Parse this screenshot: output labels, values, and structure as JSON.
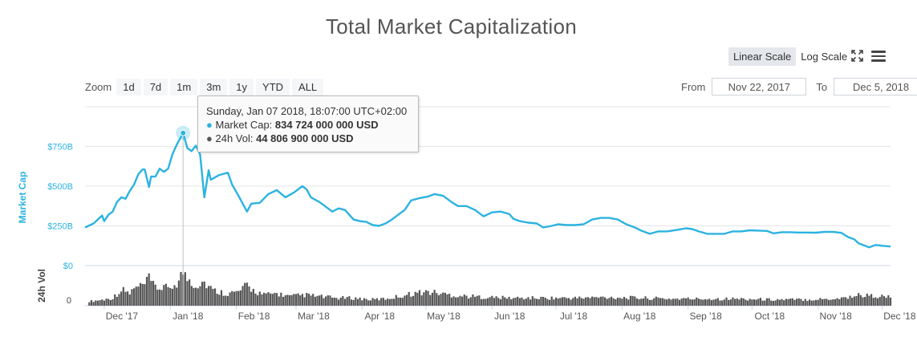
{
  "title": "Total Market Capitalization",
  "scale_buttons": {
    "linear": "Linear Scale",
    "log": "Log Scale",
    "active": "linear"
  },
  "icons": {
    "expand": "expand-icon",
    "menu": "menu-icon"
  },
  "zoom": {
    "label": "Zoom",
    "buttons": [
      "1d",
      "7d",
      "1m",
      "3m",
      "1y",
      "YTD",
      "ALL"
    ]
  },
  "range": {
    "from_label": "From",
    "from_value": "Nov 22, 2017",
    "to_label": "To",
    "to_value": "Dec 5, 2018"
  },
  "tooltip": {
    "date": "Sunday, Jan 07 2018, 18:07:00 UTC+02:00",
    "market_cap_label": "Market Cap:",
    "market_cap_value": "834 724 000 000 USD",
    "vol_label": "24h Vol:",
    "vol_value": "44 806 900 000 USD"
  },
  "colors": {
    "market_cap": "#2cb3e0",
    "volume": "#555555",
    "grid": "#e6e6e6"
  },
  "chart_data": [
    {
      "type": "line",
      "ylabel": "Market Cap",
      "y_unit": "USD billions",
      "ylim": [
        0,
        1000
      ],
      "yticks": [
        {
          "value": 0,
          "label": "$0"
        },
        {
          "value": 250,
          "label": "$250B"
        },
        {
          "value": 500,
          "label": "$500B"
        },
        {
          "value": 750,
          "label": "$750B"
        }
      ],
      "grid": true,
      "x_range": [
        "2017-11-22",
        "2018-12-05"
      ],
      "xticks": [
        {
          "date": "2017-12-01",
          "label": "Dec '17"
        },
        {
          "date": "2018-01-01",
          "label": "Jan '18"
        },
        {
          "date": "2018-02-01",
          "label": "Feb '18"
        },
        {
          "date": "2018-03-01",
          "label": "Mar '18"
        },
        {
          "date": "2018-04-01",
          "label": "Apr '18"
        },
        {
          "date": "2018-05-01",
          "label": "May '18"
        },
        {
          "date": "2018-06-01",
          "label": "Jun '18"
        },
        {
          "date": "2018-07-01",
          "label": "Jul '18"
        },
        {
          "date": "2018-08-01",
          "label": "Aug '18"
        },
        {
          "date": "2018-09-01",
          "label": "Sep '18"
        },
        {
          "date": "2018-10-01",
          "label": "Oct '18"
        },
        {
          "date": "2018-11-01",
          "label": "Nov '18"
        },
        {
          "date": "2018-12-01",
          "label": "Dec '18"
        }
      ],
      "highlight": {
        "date": "2018-01-07",
        "value": 834.7
      },
      "points": [
        [
          "2017-11-22",
          240
        ],
        [
          "2017-11-26",
          265
        ],
        [
          "2017-11-28",
          290
        ],
        [
          "2017-11-30",
          315
        ],
        [
          "2017-12-01",
          280
        ],
        [
          "2017-12-03",
          320
        ],
        [
          "2017-12-05",
          340
        ],
        [
          "2017-12-07",
          400
        ],
        [
          "2017-12-09",
          430
        ],
        [
          "2017-12-11",
          420
        ],
        [
          "2017-12-13",
          470
        ],
        [
          "2017-12-15",
          510
        ],
        [
          "2017-12-17",
          575
        ],
        [
          "2017-12-19",
          605
        ],
        [
          "2017-12-20",
          605
        ],
        [
          "2017-12-22",
          495
        ],
        [
          "2017-12-23",
          560
        ],
        [
          "2017-12-25",
          560
        ],
        [
          "2017-12-27",
          610
        ],
        [
          "2017-12-29",
          590
        ],
        [
          "2017-12-31",
          610
        ],
        [
          "2018-01-02",
          700
        ],
        [
          "2018-01-04",
          760
        ],
        [
          "2018-01-07",
          834.7
        ],
        [
          "2018-01-09",
          740
        ],
        [
          "2018-01-11",
          720
        ],
        [
          "2018-01-13",
          755
        ],
        [
          "2018-01-15",
          700
        ],
        [
          "2018-01-17",
          430
        ],
        [
          "2018-01-19",
          600
        ],
        [
          "2018-01-20",
          540
        ],
        [
          "2018-01-24",
          570
        ],
        [
          "2018-01-28",
          585
        ],
        [
          "2018-01-30",
          510
        ],
        [
          "2018-02-02",
          440
        ],
        [
          "2018-02-06",
          340
        ],
        [
          "2018-02-08",
          390
        ],
        [
          "2018-02-12",
          395
        ],
        [
          "2018-02-16",
          450
        ],
        [
          "2018-02-20",
          475
        ],
        [
          "2018-02-24",
          430
        ],
        [
          "2018-02-28",
          460
        ],
        [
          "2018-03-04",
          500
        ],
        [
          "2018-03-06",
          480
        ],
        [
          "2018-03-08",
          430
        ],
        [
          "2018-03-12",
          400
        ],
        [
          "2018-03-16",
          360
        ],
        [
          "2018-03-18",
          340
        ],
        [
          "2018-03-21",
          360
        ],
        [
          "2018-03-24",
          350
        ],
        [
          "2018-03-28",
          290
        ],
        [
          "2018-03-31",
          280
        ],
        [
          "2018-04-03",
          275
        ],
        [
          "2018-04-06",
          255
        ],
        [
          "2018-04-09",
          250
        ],
        [
          "2018-04-12",
          265
        ],
        [
          "2018-04-15",
          290
        ],
        [
          "2018-04-18",
          320
        ],
        [
          "2018-04-21",
          350
        ],
        [
          "2018-04-24",
          410
        ],
        [
          "2018-04-28",
          425
        ],
        [
          "2018-05-02",
          435
        ],
        [
          "2018-05-05",
          450
        ],
        [
          "2018-05-09",
          440
        ],
        [
          "2018-05-13",
          400
        ],
        [
          "2018-05-16",
          375
        ],
        [
          "2018-05-20",
          375
        ],
        [
          "2018-05-24",
          350
        ],
        [
          "2018-05-28",
          310
        ],
        [
          "2018-06-01",
          335
        ],
        [
          "2018-06-05",
          340
        ],
        [
          "2018-06-09",
          325
        ],
        [
          "2018-06-11",
          295
        ],
        [
          "2018-06-14",
          280
        ],
        [
          "2018-06-18",
          270
        ],
        [
          "2018-06-22",
          265
        ],
        [
          "2018-06-25",
          240
        ],
        [
          "2018-06-29",
          250
        ],
        [
          "2018-07-02",
          260
        ],
        [
          "2018-07-06",
          255
        ],
        [
          "2018-07-10",
          255
        ],
        [
          "2018-07-14",
          260
        ],
        [
          "2018-07-18",
          290
        ],
        [
          "2018-07-22",
          300
        ],
        [
          "2018-07-26",
          300
        ],
        [
          "2018-07-30",
          290
        ],
        [
          "2018-08-03",
          260
        ],
        [
          "2018-08-07",
          240
        ],
        [
          "2018-08-10",
          220
        ],
        [
          "2018-08-14",
          200
        ],
        [
          "2018-08-18",
          215
        ],
        [
          "2018-08-22",
          215
        ],
        [
          "2018-08-27",
          225
        ],
        [
          "2018-08-31",
          235
        ],
        [
          "2018-09-03",
          230
        ],
        [
          "2018-09-06",
          215
        ],
        [
          "2018-09-10",
          200
        ],
        [
          "2018-09-14",
          200
        ],
        [
          "2018-09-18",
          200
        ],
        [
          "2018-09-22",
          215
        ],
        [
          "2018-09-26",
          215
        ],
        [
          "2018-09-30",
          222
        ],
        [
          "2018-10-04",
          220
        ],
        [
          "2018-10-08",
          218
        ],
        [
          "2018-10-11",
          203
        ],
        [
          "2018-10-15",
          210
        ],
        [
          "2018-10-19",
          210
        ],
        [
          "2018-10-23",
          208
        ],
        [
          "2018-10-27",
          208
        ],
        [
          "2018-10-31",
          207
        ],
        [
          "2018-11-04",
          212
        ],
        [
          "2018-11-08",
          212
        ],
        [
          "2018-11-12",
          206
        ],
        [
          "2018-11-15",
          180
        ],
        [
          "2018-11-18",
          165
        ],
        [
          "2018-11-20",
          140
        ],
        [
          "2018-11-23",
          125
        ],
        [
          "2018-11-25",
          115
        ],
        [
          "2018-11-28",
          130
        ],
        [
          "2018-12-01",
          125
        ],
        [
          "2018-12-05",
          120
        ]
      ]
    },
    {
      "type": "bar",
      "ylabel": "24h Vol",
      "yticks": [
        {
          "value": 0,
          "label": "0"
        }
      ],
      "highlight": {
        "date": "2018-01-07",
        "value": 44.8
      },
      "points": [
        [
          "2017-11-25",
          6
        ],
        [
          "2017-12-01",
          8
        ],
        [
          "2017-12-05",
          10
        ],
        [
          "2017-12-08",
          18
        ],
        [
          "2017-12-10",
          20
        ],
        [
          "2017-12-13",
          16
        ],
        [
          "2017-12-15",
          22
        ],
        [
          "2017-12-17",
          24
        ],
        [
          "2017-12-19",
          26
        ],
        [
          "2017-12-21",
          30
        ],
        [
          "2017-12-22",
          36
        ],
        [
          "2017-12-24",
          26
        ],
        [
          "2017-12-27",
          22
        ],
        [
          "2017-12-29",
          26
        ],
        [
          "2017-12-31",
          20
        ],
        [
          "2018-01-03",
          28
        ],
        [
          "2018-01-05",
          32
        ],
        [
          "2018-01-07",
          44.8
        ],
        [
          "2018-01-08",
          38
        ],
        [
          "2018-01-10",
          34
        ],
        [
          "2018-01-13",
          26
        ],
        [
          "2018-01-16",
          32
        ],
        [
          "2018-01-18",
          28
        ],
        [
          "2018-01-21",
          20
        ],
        [
          "2018-01-24",
          18
        ],
        [
          "2018-01-28",
          16
        ],
        [
          "2018-02-02",
          18
        ],
        [
          "2018-02-06",
          26
        ],
        [
          "2018-02-09",
          20
        ],
        [
          "2018-02-14",
          14
        ],
        [
          "2018-02-20",
          16
        ],
        [
          "2018-02-26",
          12
        ],
        [
          "2018-03-05",
          14
        ],
        [
          "2018-03-12",
          12
        ],
        [
          "2018-03-20",
          10
        ],
        [
          "2018-03-28",
          10
        ],
        [
          "2018-04-05",
          8
        ],
        [
          "2018-04-12",
          9
        ],
        [
          "2018-04-18",
          12
        ],
        [
          "2018-04-25",
          16
        ],
        [
          "2018-05-01",
          18
        ],
        [
          "2018-05-05",
          17
        ],
        [
          "2018-05-10",
          15
        ],
        [
          "2018-05-16",
          13
        ],
        [
          "2018-05-22",
          12
        ],
        [
          "2018-05-30",
          11
        ],
        [
          "2018-06-10",
          10
        ],
        [
          "2018-06-25",
          10
        ],
        [
          "2018-07-10",
          10
        ],
        [
          "2018-07-25",
          11
        ],
        [
          "2018-08-10",
          10
        ],
        [
          "2018-08-25",
          9
        ],
        [
          "2018-09-10",
          9
        ],
        [
          "2018-09-25",
          9
        ],
        [
          "2018-10-10",
          8
        ],
        [
          "2018-10-25",
          8
        ],
        [
          "2018-11-08",
          9
        ],
        [
          "2018-11-15",
          11
        ],
        [
          "2018-11-20",
          14
        ],
        [
          "2018-11-25",
          13
        ],
        [
          "2018-12-01",
          12
        ],
        [
          "2018-12-05",
          11
        ]
      ]
    }
  ]
}
